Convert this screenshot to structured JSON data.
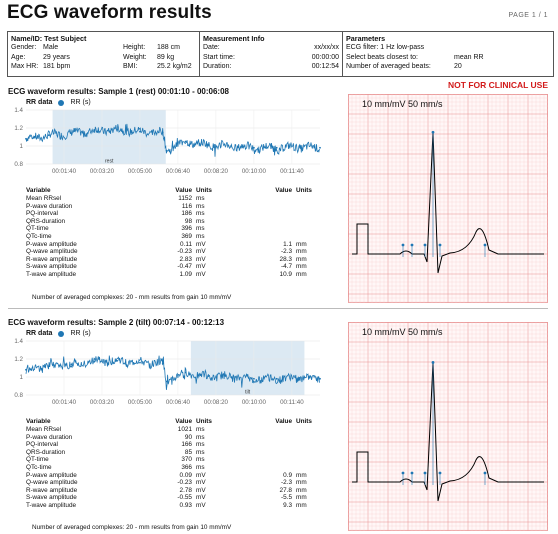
{
  "header": {
    "title": "ECG waveform results",
    "page": "PAGE 1 / 1"
  },
  "info": {
    "subject": {
      "heading": "Name/ID: Test Subject",
      "gender_label": "Gender:",
      "gender": "Male",
      "age_label": "Age:",
      "age": "29 years",
      "maxhr_label": "Max HR:",
      "maxhr": "181 bpm",
      "height_label": "Height:",
      "height": "188 cm",
      "weight_label": "Weight:",
      "weight": "89 kg",
      "bmi_label": "BMI:",
      "bmi": "25.2 kg/m2"
    },
    "measurement": {
      "heading": "Measurement Info",
      "date_label": "Date:",
      "date": "xx/xx/xx",
      "start_label": "Start time:",
      "start": "00:00:00",
      "duration_label": "Duration:",
      "duration": "00:12:54"
    },
    "parameters": {
      "heading": "Parameters",
      "filter": "ECG filter: 1 Hz low-pass",
      "select_label": "Select beats closest to:",
      "select": "mean RR",
      "avg_label": "Number of averaged beats:",
      "avg": "20"
    }
  },
  "warning": "NOT FOR CLINICAL USE",
  "table_headers": {
    "variable": "Variable",
    "value": "Value",
    "units": "Units",
    "value2": "Value",
    "units2": "Units"
  },
  "samples": [
    {
      "title": "ECG waveform results: Sample 1 (rest)    00:01:10 - 00:06:08",
      "legend_rr_data": "RR data",
      "legend_rr_s": "RR (s)",
      "highlight_label": "rest",
      "ecg_label": "10 mm/mV 50 mm/s",
      "chart_data": {
        "type": "line",
        "title": "",
        "xlabel": "",
        "ylabel": "",
        "x_ticks": [
          "00:01:40",
          "00:03:20",
          "00:05:00",
          "00:06:40",
          "00:08:20",
          "00:10:00",
          "00:11:40"
        ],
        "y_ticks": [
          0.8,
          1,
          1.2,
          1.4
        ],
        "ylim": [
          0.8,
          1.4
        ],
        "x_range_s": [
          0,
          774
        ],
        "highlight_s": [
          70,
          368
        ],
        "series": [
          {
            "name": "RR (s)",
            "x": [
              0,
              60,
              120,
              180,
              240,
              300,
              360,
              370,
              420,
              480,
              540,
              600,
              660,
              720,
              774
            ],
            "y": [
              1.08,
              1.12,
              1.14,
              1.17,
              1.18,
              1.16,
              1.15,
              0.95,
              1.05,
              1.01,
              1.0,
              0.98,
              0.98,
              0.99,
              0.98
            ]
          }
        ]
      },
      "rows": [
        {
          "var": "Mean RRsel",
          "val": "1152",
          "unit": "ms",
          "val2": "",
          "unit2": ""
        },
        {
          "var": "P-wave duration",
          "val": "116",
          "unit": "ms",
          "val2": "",
          "unit2": ""
        },
        {
          "var": "PQ-interval",
          "val": "186",
          "unit": "ms",
          "val2": "",
          "unit2": ""
        },
        {
          "var": "QRS-duration",
          "val": "98",
          "unit": "ms",
          "val2": "",
          "unit2": ""
        },
        {
          "var": "QT-time",
          "val": "396",
          "unit": "ms",
          "val2": "",
          "unit2": ""
        },
        {
          "var": "QTc-time",
          "val": "369",
          "unit": "ms",
          "val2": "",
          "unit2": ""
        },
        {
          "var": "P-wave amplitude",
          "val": "0.11",
          "unit": "mV",
          "val2": "1.1",
          "unit2": "mm"
        },
        {
          "var": "Q-wave amplitude",
          "val": "-0.23",
          "unit": "mV",
          "val2": "-2.3",
          "unit2": "mm"
        },
        {
          "var": "R-wave amplitude",
          "val": "2.83",
          "unit": "mV",
          "val2": "28.3",
          "unit2": "mm"
        },
        {
          "var": "S-wave amplitude",
          "val": "-0.47",
          "unit": "mV",
          "val2": "-4.7",
          "unit2": "mm"
        },
        {
          "var": "T-wave amplitude",
          "val": "1.09",
          "unit": "mV",
          "val2": "10.9",
          "unit2": "mm"
        }
      ],
      "footnote": "Number of averaged complexes: 20    -    mm results from gain 10 mm/mV"
    },
    {
      "title": "ECG waveform results: Sample 2 (tilt)    00:07:14 - 00:12:13",
      "legend_rr_data": "RR data",
      "legend_rr_s": "RR (s)",
      "highlight_label": "tilt",
      "ecg_label": "10 mm/mV 50 mm/s",
      "chart_data": {
        "type": "line",
        "title": "",
        "xlabel": "",
        "ylabel": "",
        "x_ticks": [
          "00:01:40",
          "00:03:20",
          "00:05:00",
          "00:06:40",
          "00:08:20",
          "00:10:00",
          "00:11:40"
        ],
        "y_ticks": [
          0.8,
          1,
          1.2,
          1.4
        ],
        "ylim": [
          0.8,
          1.4
        ],
        "x_range_s": [
          0,
          774
        ],
        "highlight_s": [
          434,
          733
        ],
        "series": [
          {
            "name": "RR (s)",
            "x": [
              0,
              60,
              120,
              180,
              240,
              300,
              360,
              370,
              420,
              480,
              540,
              600,
              660,
              720,
              774
            ],
            "y": [
              1.08,
              1.12,
              1.14,
              1.17,
              1.18,
              1.16,
              1.15,
              0.95,
              1.05,
              1.01,
              1.0,
              0.98,
              0.98,
              0.99,
              0.98
            ]
          }
        ]
      },
      "rows": [
        {
          "var": "Mean RRsel",
          "val": "1021",
          "unit": "ms",
          "val2": "",
          "unit2": ""
        },
        {
          "var": "P-wave duration",
          "val": "90",
          "unit": "ms",
          "val2": "",
          "unit2": ""
        },
        {
          "var": "PQ-interval",
          "val": "166",
          "unit": "ms",
          "val2": "",
          "unit2": ""
        },
        {
          "var": "QRS-duration",
          "val": "85",
          "unit": "ms",
          "val2": "",
          "unit2": ""
        },
        {
          "var": "QT-time",
          "val": "370",
          "unit": "ms",
          "val2": "",
          "unit2": ""
        },
        {
          "var": "QTc-time",
          "val": "366",
          "unit": "ms",
          "val2": "",
          "unit2": ""
        },
        {
          "var": "P-wave amplitude",
          "val": "0.09",
          "unit": "mV",
          "val2": "0.9",
          "unit2": "mm"
        },
        {
          "var": "Q-wave amplitude",
          "val": "-0.23",
          "unit": "mV",
          "val2": "-2.3",
          "unit2": "mm"
        },
        {
          "var": "R-wave amplitude",
          "val": "2.78",
          "unit": "mV",
          "val2": "27.8",
          "unit2": "mm"
        },
        {
          "var": "S-wave amplitude",
          "val": "-0.55",
          "unit": "mV",
          "val2": "-5.5",
          "unit2": "mm"
        },
        {
          "var": "T-wave amplitude",
          "val": "0.93",
          "unit": "mV",
          "val2": "9.3",
          "unit2": "mm"
        }
      ],
      "footnote": "Number of averaged complexes: 20    -    mm results from gain 10 mm/mV"
    }
  ],
  "colors": {
    "rr_line": "#1f77b4",
    "highlight": "#dce9f3",
    "grid_minor": "#f6c9c9",
    "grid_major": "#e88f8f",
    "warning": "#d21a1a"
  }
}
